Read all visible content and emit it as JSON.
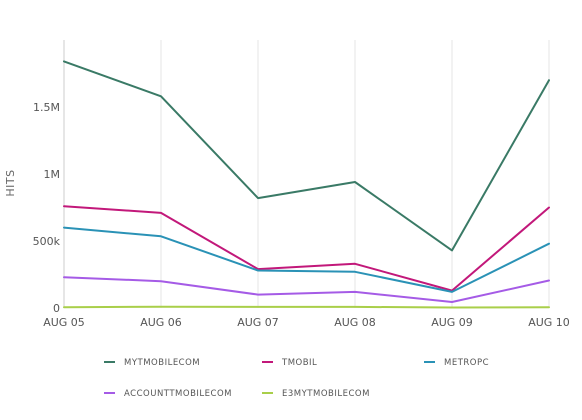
{
  "chart_data": {
    "type": "line",
    "title": "",
    "xlabel": "",
    "ylabel": "HITS",
    "categories": [
      "AUG 05",
      "AUG 06",
      "AUG 07",
      "AUG 08",
      "AUG 09",
      "AUG 10"
    ],
    "ylim": [
      0,
      2000000
    ],
    "yticks": [
      0,
      500000,
      1000000,
      1500000
    ],
    "ytick_labels": [
      "0",
      "500k",
      "1M",
      "1.5M"
    ],
    "grid": "vertical",
    "legend_position": "bottom",
    "series": [
      {
        "name": "MYTMOBILECOM",
        "color": "#3a7a66",
        "values": [
          1840000,
          1580000,
          820000,
          940000,
          430000,
          1700000
        ]
      },
      {
        "name": "TMOBIL",
        "color": "#c2187a",
        "values": [
          760000,
          710000,
          290000,
          330000,
          130000,
          750000
        ]
      },
      {
        "name": "METROPC",
        "color": "#2a92b6",
        "values": [
          600000,
          535000,
          280000,
          270000,
          120000,
          480000
        ]
      },
      {
        "name": "ACCOUNTTMOBILECOM",
        "color": "#a55be6",
        "values": [
          230000,
          200000,
          100000,
          120000,
          45000,
          205000
        ]
      },
      {
        "name": "E3MYTMOBILECOM",
        "color": "#a9cf4a",
        "values": [
          5000,
          10000,
          8000,
          8000,
          4000,
          6000
        ]
      }
    ]
  }
}
